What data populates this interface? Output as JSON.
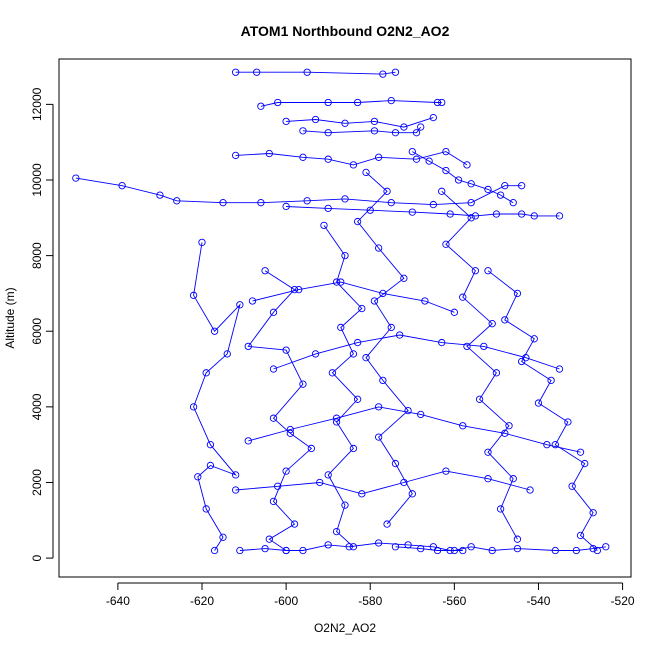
{
  "chart_data": {
    "type": "line",
    "title": "ATOM1 Northbound O2N2_AO2",
    "xlabel": "O2N2_AO2",
    "ylabel": "Altitude (m)",
    "xlim": [
      -654,
      -518
    ],
    "ylim": [
      -500,
      13200
    ],
    "xticks": [
      -640,
      -620,
      -600,
      -580,
      -560,
      -540,
      -520
    ],
    "yticks": [
      0,
      2000,
      4000,
      6000,
      8000,
      10000,
      12000
    ],
    "series_color": "#0000ff",
    "marker": "open-circle",
    "series": [
      {
        "x": [
          -612,
          -607,
          -595,
          -577,
          -574
        ],
        "y": [
          12850,
          12850,
          12850,
          12800,
          12850
        ]
      },
      {
        "x": [
          -606,
          -602,
          -590,
          -583,
          -575,
          -564,
          -563
        ],
        "y": [
          11950,
          12050,
          12050,
          12050,
          12100,
          12050,
          12050
        ]
      },
      {
        "x": [
          -596,
          -590,
          -579,
          -574,
          -569,
          -568
        ],
        "y": [
          11300,
          11250,
          11300,
          11250,
          11250,
          11400
        ]
      },
      {
        "x": [
          -650,
          -639,
          -630,
          -626,
          -615,
          -606,
          -595,
          -586,
          -575,
          -565,
          -556,
          -548,
          -544
        ],
        "y": [
          10050,
          9850,
          9600,
          9450,
          9400,
          9400,
          9450,
          9500,
          9400,
          9350,
          9400,
          9850,
          9850
        ]
      },
      {
        "x": [
          -600,
          -590,
          -580,
          -570,
          -561,
          -555,
          -550,
          -544,
          -541,
          -535
        ],
        "y": [
          9300,
          9250,
          9200,
          9150,
          9100,
          9050,
          9100,
          9100,
          9050,
          9050
        ]
      },
      {
        "x": [
          -612,
          -604,
          -596,
          -590,
          -584,
          -578,
          -569,
          -562,
          -557
        ],
        "y": [
          10650,
          10700,
          10600,
          10550,
          10400,
          10600,
          10550,
          10750,
          10400
        ]
      },
      {
        "x": [
          -620,
          -622,
          -617,
          -611,
          -614,
          -619,
          -622,
          -618,
          -612,
          -618,
          -621,
          -619,
          -615,
          -617
        ],
        "y": [
          8350,
          6950,
          6000,
          6700,
          5400,
          4900,
          4000,
          3000,
          2200,
          2450,
          2150,
          1300,
          550,
          200
        ]
      },
      {
        "x": [
          -605,
          -598,
          -603,
          -609,
          -600,
          -596,
          -603,
          -599,
          -594,
          -600,
          -603,
          -598,
          -604,
          -600
        ],
        "y": [
          7600,
          7100,
          6500,
          5600,
          5500,
          4600,
          3700,
          3300,
          2900,
          2300,
          1500,
          900,
          500,
          200
        ]
      },
      {
        "x": [
          -591,
          -586,
          -588,
          -582,
          -587,
          -584,
          -589,
          -583,
          -588,
          -584,
          -590,
          -586,
          -588,
          -584
        ],
        "y": [
          8800,
          8000,
          7300,
          6600,
          6100,
          5400,
          4900,
          4200,
          3600,
          2900,
          2200,
          1400,
          700,
          300
        ]
      },
      {
        "x": [
          -581,
          -576,
          -583,
          -578,
          -572,
          -579,
          -575,
          -581,
          -577,
          -571,
          -578,
          -574,
          -570,
          -576
        ],
        "y": [
          10200,
          9700,
          8900,
          8200,
          7400,
          6800,
          6100,
          5300,
          4700,
          3900,
          3200,
          2500,
          1700,
          900
        ]
      },
      {
        "x": [
          -563,
          -556,
          -562,
          -555,
          -558,
          -551,
          -557,
          -550,
          -554,
          -547,
          -552,
          -546,
          -549,
          -545
        ],
        "y": [
          9700,
          9000,
          8300,
          7600,
          6900,
          6200,
          5600,
          4900,
          4200,
          3500,
          2800,
          2100,
          1300,
          500
        ]
      },
      {
        "x": [
          -552,
          -545,
          -548,
          -541,
          -544,
          -537,
          -540,
          -533,
          -536,
          -529,
          -532,
          -527,
          -530,
          -526
        ],
        "y": [
          7600,
          7000,
          6300,
          5800,
          5200,
          4700,
          4100,
          3600,
          3000,
          2500,
          1900,
          1200,
          600,
          200
        ]
      },
      {
        "x": [
          -611,
          -605,
          -600,
          -596,
          -590,
          -585,
          -578,
          -571,
          -565,
          -561,
          -558
        ],
        "y": [
          200,
          250,
          200,
          200,
          350,
          300,
          400,
          350,
          300,
          200,
          200
        ]
      },
      {
        "x": [
          -574,
          -568,
          -564,
          -560,
          -556,
          -551,
          -545,
          -536,
          -531,
          -527,
          -524
        ],
        "y": [
          300,
          250,
          200,
          200,
          300,
          200,
          250,
          200,
          200,
          250,
          300
        ]
      },
      {
        "x": [
          -609,
          -599,
          -588,
          -578,
          -568,
          -558,
          -548,
          -538,
          -530
        ],
        "y": [
          3100,
          3400,
          3700,
          4000,
          3800,
          3500,
          3300,
          3000,
          2800
        ]
      },
      {
        "x": [
          -603,
          -593,
          -583,
          -573,
          -563,
          -553,
          -543,
          -535
        ],
        "y": [
          5000,
          5400,
          5700,
          5900,
          5700,
          5600,
          5300,
          5000
        ]
      },
      {
        "x": [
          -608,
          -597,
          -587,
          -577,
          -567,
          -560
        ],
        "y": [
          6800,
          7100,
          7300,
          7000,
          6800,
          6500
        ]
      },
      {
        "x": [
          -570,
          -566,
          -562,
          -559,
          -556,
          -552,
          -549,
          -546
        ],
        "y": [
          10750,
          10500,
          10250,
          10000,
          9900,
          9750,
          9600,
          9400
        ]
      },
      {
        "x": [
          -600,
          -593,
          -586,
          -579,
          -572,
          -565
        ],
        "y": [
          11550,
          11600,
          11500,
          11550,
          11400,
          11650
        ]
      },
      {
        "x": [
          -612,
          -602,
          -592,
          -582,
          -572,
          -562,
          -552,
          -542
        ],
        "y": [
          1800,
          1900,
          2000,
          1700,
          2000,
          2300,
          2100,
          1800
        ]
      }
    ]
  }
}
